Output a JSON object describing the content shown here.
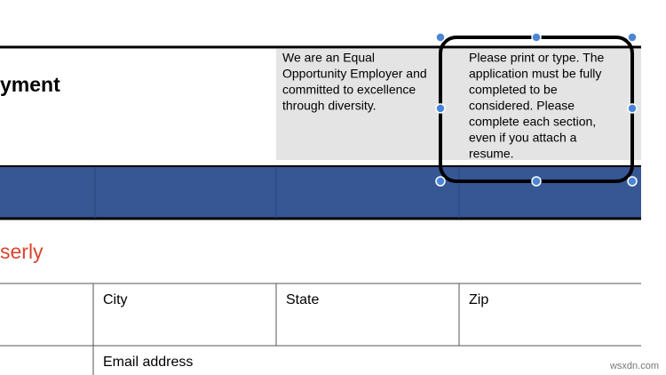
{
  "document": {
    "title_fragment": "yment",
    "eeo_note": {
      "lines": [
        "We are an Equal",
        "Opportunity Employer and",
        "committed to excellence",
        "through diversity."
      ]
    },
    "instructions": {
      "lines": [
        "Please print or type. The",
        "application must be fully",
        "completed to be",
        "considered. Please",
        "complete each section,",
        "even if you attach a",
        "resume."
      ]
    },
    "section_fragment": "serly",
    "fields": {
      "city": "City",
      "state": "State",
      "zip": "Zip",
      "email": "Email address"
    },
    "watermark": "wsxdn.com"
  }
}
